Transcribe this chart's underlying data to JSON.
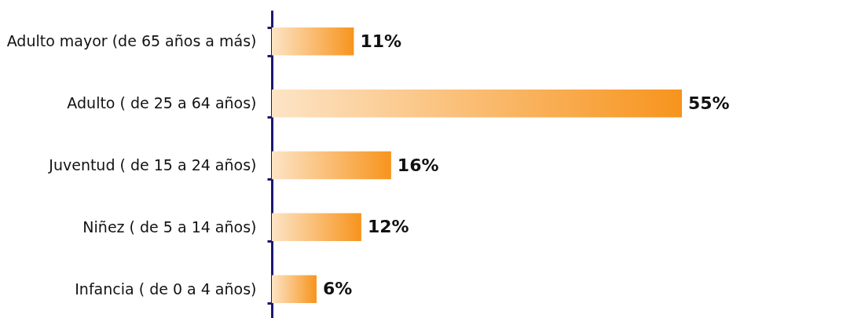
{
  "chart_data": {
    "type": "bar",
    "orientation": "horizontal",
    "categories": [
      "Adulto mayor (de 65 años a más)",
      "Adulto ( de 25 a 64 años)",
      "Juventud ( de 15 a 24 años)",
      "Niñez ( de 5 a 14 años)",
      "Infancia ( de 0 a 4 años)"
    ],
    "values": [
      11,
      55,
      16,
      12,
      6
    ],
    "value_labels": [
      "11%",
      "55%",
      "16%",
      "12%",
      "6%"
    ],
    "color": "#f7941d",
    "grid": false
  }
}
